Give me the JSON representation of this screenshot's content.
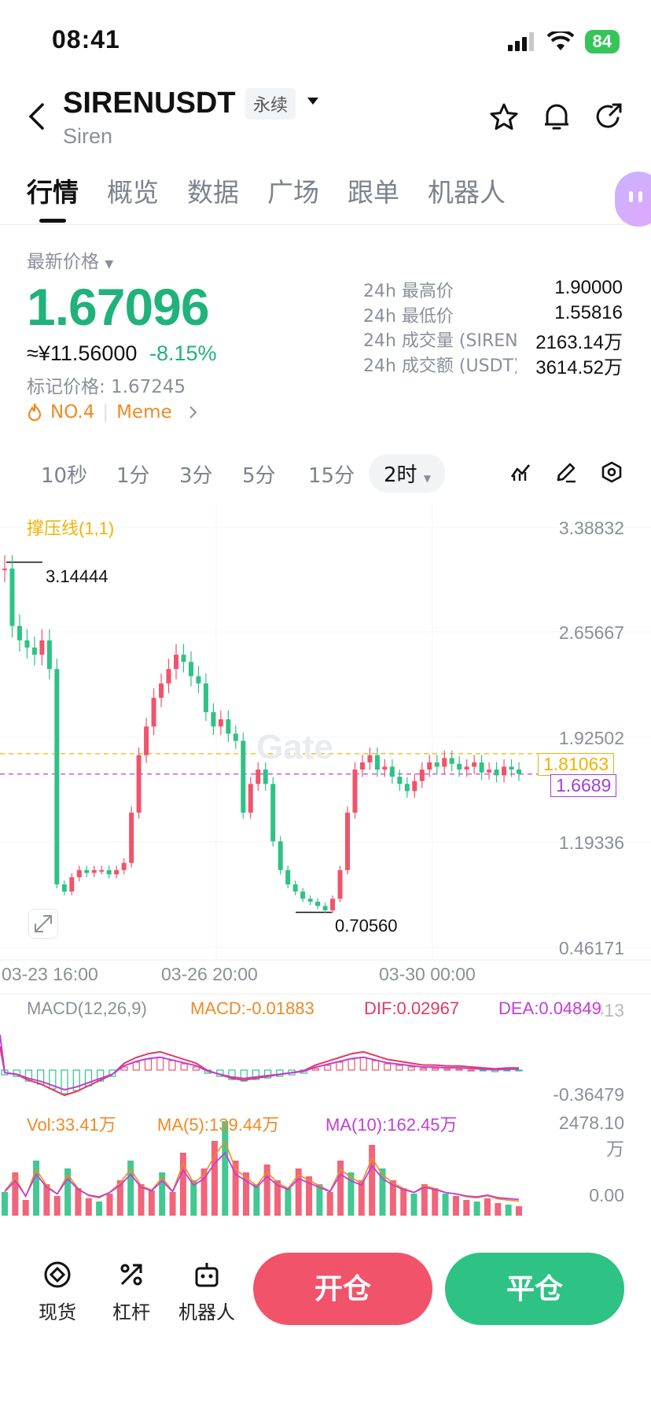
{
  "status_bar": {
    "time": "08:41",
    "battery": "84"
  },
  "header": {
    "symbol": "SIRENUSDT",
    "contract_type": "永续",
    "name": "Siren"
  },
  "tabs": [
    "行情",
    "概览",
    "数据",
    "广场",
    "跟单",
    "机器人"
  ],
  "ticker": {
    "price_label": "最新价格",
    "last_price": "1.67096",
    "cny_price": "≈¥11.56000",
    "change": "-8.15%",
    "mark_price": "标记价格: 1.67245",
    "rank": "NO.4",
    "category": "Meme",
    "stats": [
      {
        "label": "24h 最高价",
        "value": "1.90000"
      },
      {
        "label": "24h 最低价",
        "value": "1.55816"
      },
      {
        "label": "24h 成交量 (SIREN)",
        "value": "2163.14万"
      },
      {
        "label": "24h 成交额 (USDT)",
        "value": "3614.52万"
      }
    ]
  },
  "intervals": [
    "10秒",
    "1分",
    "3分",
    "5分",
    "15分",
    "2时"
  ],
  "chart": {
    "indicator_label": "撑压线(1,1)",
    "watermark": "Gate",
    "y_labels": [
      "3.38832",
      "2.65667",
      "1.92502",
      "1.19336",
      "0.46171"
    ],
    "high_marker": "3.14444",
    "low_marker": "0.70560",
    "resistance_tag": "1.81063",
    "current_tag": "1.6689",
    "x_labels": [
      "03-23 16:00",
      "03-26 20:00",
      "03-30 00:00"
    ],
    "macd": {
      "label": "MACD(12,26,9)",
      "macd": "MACD:-0.01883",
      "dif": "DIF:0.02967",
      "dea": "DEA:0.04849",
      "y_top": "0.36413",
      "y_bottom": "-0.36479"
    },
    "volume": {
      "vol": "Vol:33.41万",
      "ma5": "MA(5):139.44万",
      "ma10": "MA(10):162.45万",
      "y_top": "2478.10万",
      "y_bottom": "0.00"
    },
    "colors": {
      "up": "#f1536a",
      "down": "#2ec285",
      "ma5": "#f08a24",
      "ma10": "#c13fd6"
    }
  },
  "bottom": {
    "spot": "现货",
    "leverage": "杠杆",
    "bot": "机器人",
    "open": "开仓",
    "close": "平仓"
  }
}
